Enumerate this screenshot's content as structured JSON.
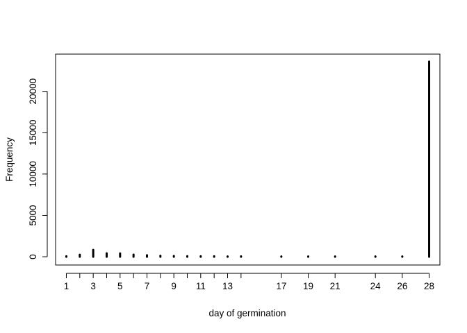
{
  "chart_data": {
    "type": "bar",
    "xlabel": "day of germination",
    "ylabel": "Frequency",
    "xlim": [
      0.2,
      28.8
    ],
    "ylim": [
      -1000,
      24500
    ],
    "x_ticks": [
      1,
      3,
      5,
      7,
      9,
      11,
      13,
      17,
      19,
      21,
      24,
      26,
      28
    ],
    "y_ticks": [
      0,
      5000,
      10000,
      15000,
      20000
    ],
    "x": [
      1,
      2,
      3,
      4,
      5,
      6,
      7,
      8,
      9,
      10,
      11,
      12,
      13,
      14,
      17,
      19,
      21,
      24,
      26,
      28
    ],
    "values": [
      60,
      250,
      830,
      420,
      400,
      260,
      180,
      110,
      90,
      70,
      60,
      60,
      40,
      50,
      40,
      40,
      40,
      40,
      40,
      23600
    ],
    "grid": false,
    "color": "#000000"
  }
}
